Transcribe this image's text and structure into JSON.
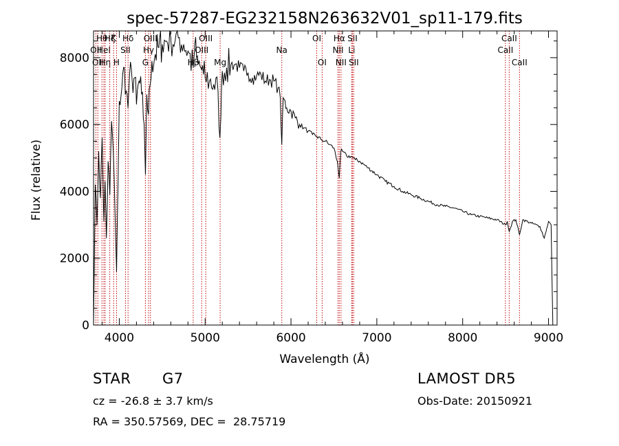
{
  "chart_data": {
    "type": "line",
    "title": "spec-57287-EG232158N263632V01_sp11-179.fits",
    "xlabel": "Wavelength (Å)",
    "ylabel": "Flux (relative)",
    "xlim": [
      3700,
      9100
    ],
    "ylim": [
      0,
      8800
    ],
    "xticks": [
      4000,
      5000,
      6000,
      7000,
      8000,
      9000
    ],
    "yticks": [
      0,
      2000,
      4000,
      6000,
      8000
    ],
    "grid": false,
    "line_color": "#000000",
    "marker_color": "#c00000",
    "series": [
      {
        "x": [
          3700,
          3720,
          3740,
          3760,
          3780,
          3800,
          3820,
          3835,
          3850,
          3870,
          3890,
          3910,
          3930,
          3950,
          3968,
          3985,
          4000,
          4030,
          4060,
          4080,
          4101,
          4120,
          4150,
          4180,
          4200,
          4230,
          4260,
          4290,
          4305,
          4320,
          4340,
          4360,
          4380,
          4420,
          4460,
          4500,
          4550,
          4600,
          4650,
          4700,
          4750,
          4800,
          4861,
          4880,
          4900,
          4920,
          4950,
          4980,
          5000,
          5050,
          5100,
          5150,
          5172,
          5183,
          5200,
          5250,
          5300,
          5350,
          5400,
          5450,
          5500,
          5550,
          5600,
          5650,
          5700,
          5750,
          5800,
          5850,
          5875,
          5893,
          5910,
          5950,
          6000,
          6050,
          6100,
          6150,
          6200,
          6250,
          6300,
          6350,
          6400,
          6450,
          6500,
          6540,
          6563,
          6580,
          6600,
          6650,
          6700,
          6750,
          6800,
          6900,
          7000,
          7100,
          7200,
          7300,
          7400,
          7500,
          7600,
          7700,
          7800,
          7900,
          8000,
          8100,
          8200,
          8300,
          8400,
          8498,
          8520,
          8542,
          8580,
          8620,
          8662,
          8700,
          8800,
          8900,
          8950,
          8980,
          9000,
          9030,
          9040,
          9050
        ],
        "y": [
          0,
          4200,
          3000,
          5200,
          3800,
          5600,
          3100,
          4300,
          2600,
          4900,
          3900,
          6100,
          5200,
          3400,
          1600,
          4200,
          6700,
          7100,
          7700,
          7000,
          6500,
          7500,
          7300,
          7400,
          6600,
          7300,
          6900,
          6000,
          4500,
          6900,
          6300,
          7200,
          7900,
          8100,
          8300,
          8400,
          8500,
          8600,
          8500,
          8600,
          8400,
          8200,
          7700,
          8400,
          8000,
          7800,
          7700,
          7500,
          7400,
          7300,
          7200,
          7000,
          5600,
          6200,
          7600,
          7700,
          7800,
          7800,
          7700,
          7600,
          7550,
          7400,
          7450,
          7500,
          7300,
          7350,
          7300,
          7100,
          6800,
          5400,
          6800,
          6500,
          6400,
          6200,
          6000,
          5900,
          5800,
          5700,
          5650,
          5550,
          5500,
          5400,
          5300,
          4900,
          4400,
          5200,
          5200,
          5050,
          5050,
          4950,
          4900,
          4700,
          4500,
          4300,
          4150,
          4000,
          3900,
          3800,
          3700,
          3600,
          3550,
          3500,
          3400,
          3300,
          3250,
          3200,
          3150,
          3000,
          3100,
          2800,
          3100,
          3150,
          2700,
          3150,
          3050,
          2950,
          2600,
          2900,
          3100,
          3000,
          1500,
          0
        ]
      }
    ],
    "line_markers": [
      {
        "x": 3727,
        "labels": [
          "OII"
        ],
        "rows": [
          2
        ]
      },
      {
        "x": 3750,
        "labels": [
          "OII"
        ],
        "rows": [
          3
        ]
      },
      {
        "x": 3798,
        "labels": [
          "Hθ"
        ],
        "rows": [
          1
        ]
      },
      {
        "x": 3820,
        "labels": [
          "HeI"
        ],
        "rows": [
          2
        ]
      },
      {
        "x": 3835,
        "labels": [
          "Hη"
        ],
        "rows": [
          3
        ]
      },
      {
        "x": 3889,
        "labels": [
          "Hζ"
        ],
        "rows": [
          1
        ]
      },
      {
        "x": 3934,
        "labels": [
          "K"
        ],
        "rows": [
          1
        ]
      },
      {
        "x": 3968,
        "labels": [
          "H"
        ],
        "rows": [
          3
        ]
      },
      {
        "x": 4072,
        "labels": [
          "SII"
        ],
        "rows": [
          2
        ]
      },
      {
        "x": 4102,
        "labels": [
          "Hδ"
        ],
        "rows": [
          1
        ]
      },
      {
        "x": 4304,
        "labels": [
          "G"
        ],
        "rows": [
          3
        ]
      },
      {
        "x": 4341,
        "labels": [
          "Hγ"
        ],
        "rows": [
          2
        ]
      },
      {
        "x": 4363,
        "labels": [
          "OIII"
        ],
        "rows": [
          1
        ]
      },
      {
        "x": 4861,
        "labels": [
          "Hβ"
        ],
        "rows": [
          3
        ]
      },
      {
        "x": 4959,
        "labels": [
          "OIII"
        ],
        "rows": [
          2
        ]
      },
      {
        "x": 5007,
        "labels": [
          "OIII"
        ],
        "rows": [
          1
        ]
      },
      {
        "x": 5175,
        "labels": [
          "Mg"
        ],
        "rows": [
          3
        ]
      },
      {
        "x": 5893,
        "labels": [
          "Na"
        ],
        "rows": [
          2
        ]
      },
      {
        "x": 6300,
        "labels": [
          "OI"
        ],
        "rows": [
          1
        ]
      },
      {
        "x": 6363,
        "labels": [
          "OI"
        ],
        "rows": [
          3
        ]
      },
      {
        "x": 6548,
        "labels": [
          "NII"
        ],
        "rows": [
          2
        ]
      },
      {
        "x": 6563,
        "labels": [
          "Hα"
        ],
        "rows": [
          1
        ]
      },
      {
        "x": 6583,
        "labels": [
          "NII"
        ],
        "rows": [
          3
        ]
      },
      {
        "x": 6707,
        "labels": [
          "Li"
        ],
        "rows": [
          2
        ]
      },
      {
        "x": 6716,
        "labels": [
          "SII"
        ],
        "rows": [
          1
        ]
      },
      {
        "x": 6731,
        "labels": [
          "SII"
        ],
        "rows": [
          3
        ]
      },
      {
        "x": 8498,
        "labels": [
          "CaII"
        ],
        "rows": [
          2
        ]
      },
      {
        "x": 8542,
        "labels": [
          "CaII"
        ],
        "rows": [
          1
        ]
      },
      {
        "x": 8662,
        "labels": [
          "CaII"
        ],
        "rows": [
          3
        ]
      }
    ]
  },
  "info": {
    "class": "STAR",
    "subclass": "G7",
    "survey": "LAMOST DR5",
    "redshift": "cz = -26.8 ± 3.7 km/s",
    "obs_date": "Obs-Date: 20150921",
    "coords": "RA = 350.57569, DEC =  28.75719"
  }
}
